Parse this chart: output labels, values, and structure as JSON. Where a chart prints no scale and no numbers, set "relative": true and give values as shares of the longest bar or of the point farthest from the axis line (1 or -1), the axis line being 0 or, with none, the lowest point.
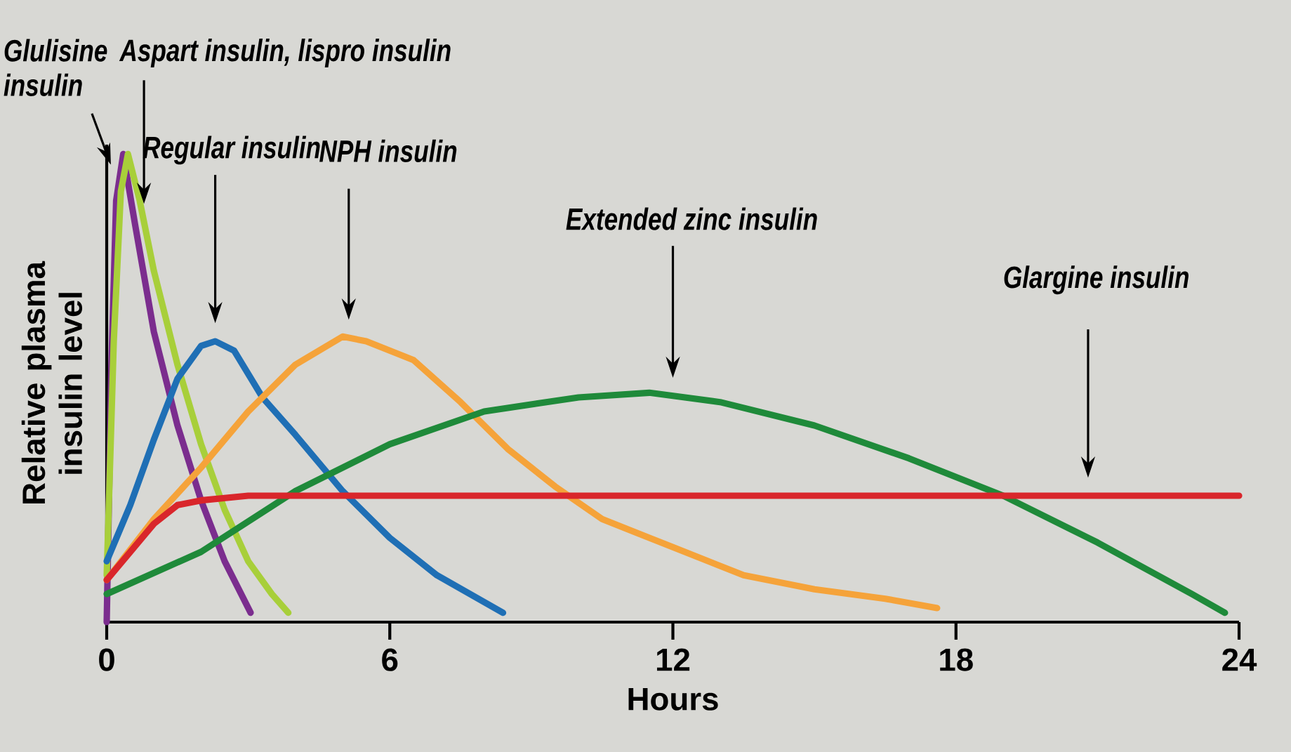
{
  "chart_data": {
    "type": "line",
    "relative": true,
    "xlabel": "Hours",
    "ylabel": "Relative plasma insulin level",
    "xlim": [
      0,
      24
    ],
    "xticks": [
      0,
      6,
      12,
      18,
      24
    ],
    "grid": false,
    "marker": "none",
    "line_style": "solid",
    "series": [
      {
        "color": "#7b2d8e",
        "x": [
          0,
          0.1,
          0.2,
          0.35,
          0.6,
          1.0,
          1.5,
          2.0,
          2.5,
          3.05
        ],
        "values": [
          0,
          0.55,
          0.9,
          1.0,
          0.85,
          0.62,
          0.42,
          0.26,
          0.13,
          0.02
        ]
      },
      {
        "color": "#a8cf3a",
        "x": [
          0,
          0.15,
          0.3,
          0.45,
          0.7,
          1.0,
          1.5,
          2.0,
          2.5,
          3.0,
          3.5,
          3.85
        ],
        "values": [
          0.1,
          0.6,
          0.92,
          1.0,
          0.9,
          0.75,
          0.55,
          0.38,
          0.24,
          0.13,
          0.06,
          0.02
        ]
      },
      {
        "color": "#1f6fb5",
        "x": [
          0,
          0.5,
          1.0,
          1.5,
          2.0,
          2.3,
          2.7,
          3.3,
          4.0,
          5.0,
          6.0,
          7.0,
          8.4
        ],
        "values": [
          0.13,
          0.25,
          0.39,
          0.52,
          0.59,
          0.6,
          0.58,
          0.48,
          0.4,
          0.28,
          0.18,
          0.1,
          0.02
        ]
      },
      {
        "color": "#f5a33a",
        "x": [
          0,
          1,
          2,
          3,
          4,
          5,
          5.5,
          6.5,
          7.5,
          8.5,
          9.5,
          10.5,
          12,
          13.5,
          15,
          16.5,
          17.6
        ],
        "values": [
          0.09,
          0.22,
          0.33,
          0.45,
          0.55,
          0.61,
          0.6,
          0.56,
          0.47,
          0.37,
          0.29,
          0.22,
          0.16,
          0.1,
          0.07,
          0.05,
          0.03
        ]
      },
      {
        "color": "#1f8a3a",
        "x": [
          0,
          2,
          4,
          6,
          8,
          10,
          11.5,
          13,
          15,
          17,
          19,
          21,
          23,
          23.7
        ],
        "values": [
          0.06,
          0.15,
          0.28,
          0.38,
          0.45,
          0.48,
          0.49,
          0.47,
          0.42,
          0.35,
          0.27,
          0.17,
          0.06,
          0.02
        ]
      },
      {
        "color": "#d9262b",
        "x": [
          0,
          0.5,
          1,
          1.5,
          2,
          3,
          24
        ],
        "values": [
          0.09,
          0.15,
          0.21,
          0.25,
          0.26,
          0.27,
          0.27
        ]
      }
    ],
    "annotations": [
      "Glulisine insulin",
      "Aspart insulin, lispro insulin",
      "Regular insulin",
      "NPH insulin",
      "Extended zinc insulin",
      "Glargine insulin"
    ]
  }
}
